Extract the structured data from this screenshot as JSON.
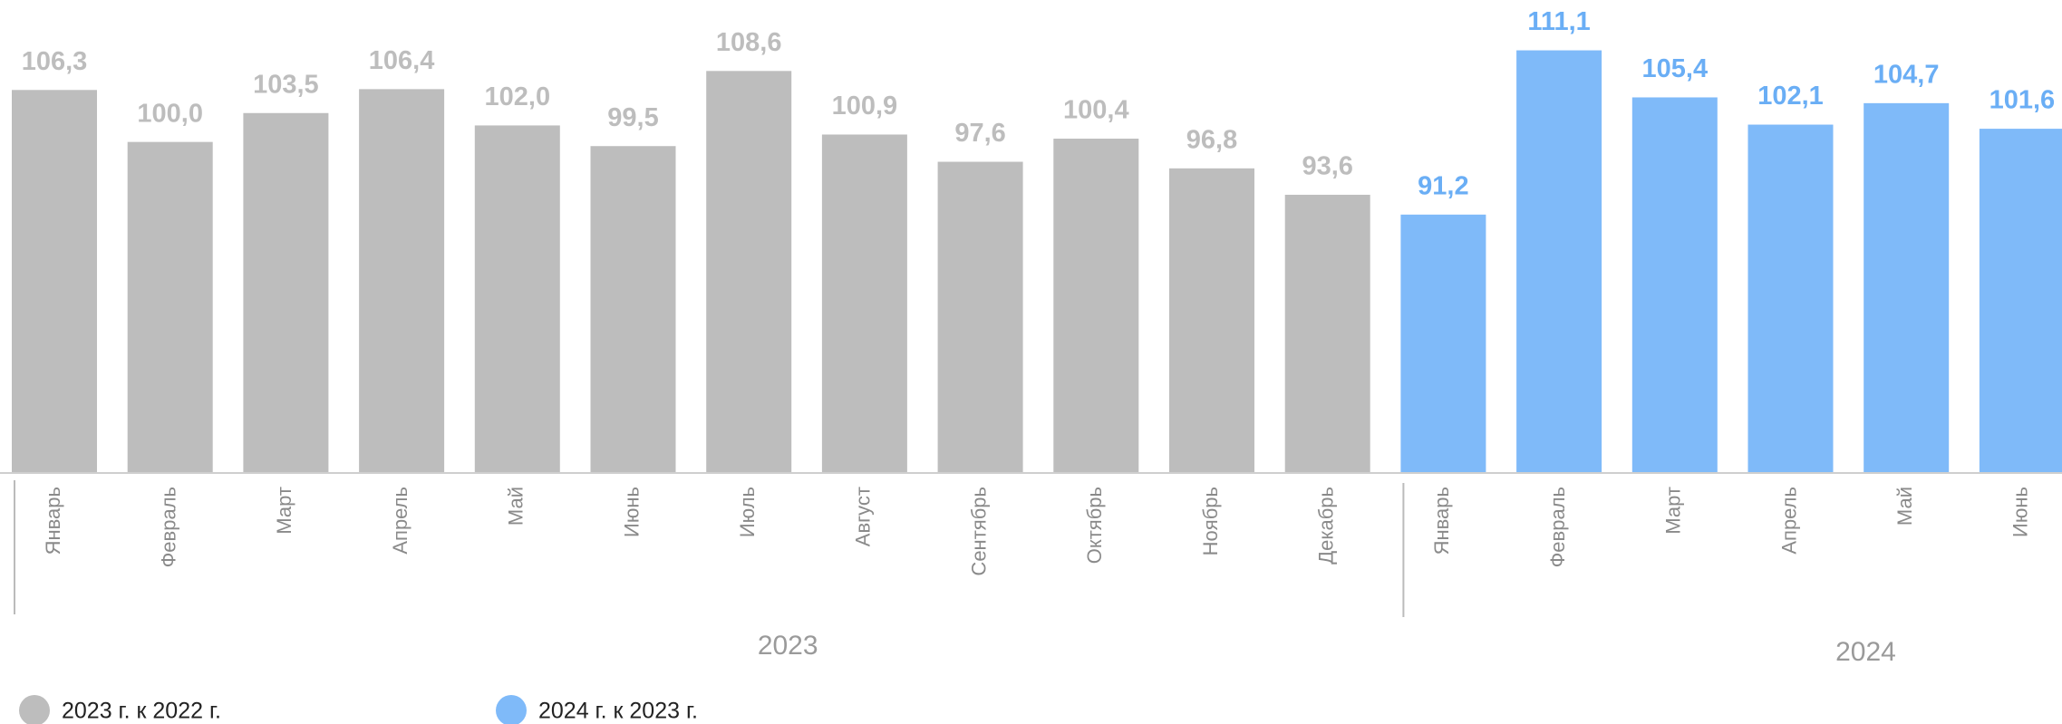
{
  "chart_data": {
    "type": "bar",
    "ylim": [
      60,
      117.2
    ],
    "groups": [
      {
        "label": "2023",
        "name": "2023 г. к 2022 г.",
        "color": "#bdbdbd",
        "label_color": "#bdbdbd",
        "categories": [
          "Январь",
          "Февраль",
          "Март",
          "Апрель",
          "Май",
          "Июнь",
          "Июль",
          "Август",
          "Сентябрь",
          "Октябрь",
          "Ноябрь",
          "Декабрь"
        ],
        "values": [
          106.3,
          100.0,
          103.5,
          106.4,
          102.0,
          99.5,
          108.6,
          100.9,
          97.6,
          100.4,
          96.8,
          93.6
        ],
        "value_labels": [
          "106,3",
          "100,0",
          "103,5",
          "106,4",
          "102,0",
          "99,5",
          "108,6",
          "100,9",
          "97,6",
          "100,4",
          "96,8",
          "93,6"
        ]
      },
      {
        "label": "2024",
        "name": "2024 г. к 2023 г.",
        "color": "#7fbaf9",
        "label_color": "#6aaef5",
        "categories": [
          "Январь",
          "Февраль",
          "Март",
          "Апрель",
          "Май",
          "Июнь"
        ],
        "values": [
          91.2,
          111.1,
          105.4,
          102.1,
          104.7,
          101.6
        ],
        "value_labels": [
          "91,2",
          "111,1",
          "105,4",
          "102,1",
          "104,7",
          "101,6"
        ]
      }
    ]
  }
}
